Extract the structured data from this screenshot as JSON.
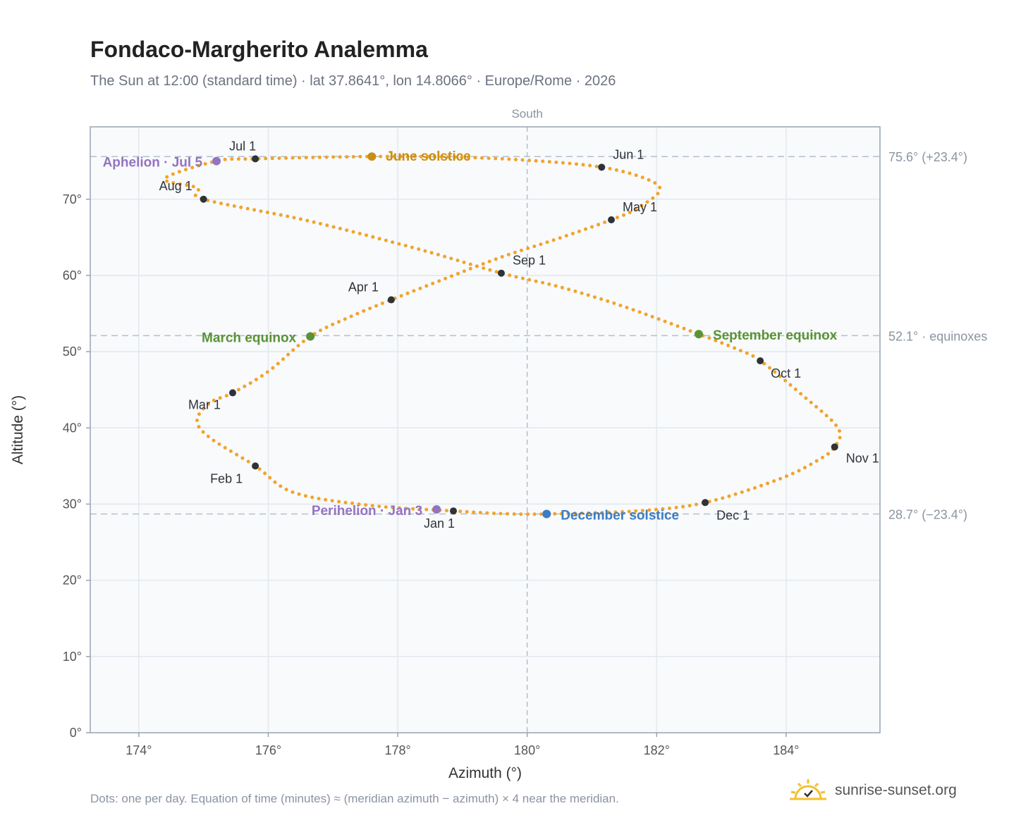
{
  "header": {
    "title": "Fondaco-Margherito Analemma",
    "subtitle": "The Sun at 12:00 (standard time) · lat 37.8641°, lon 14.8066° · Europe/Rome · 2026"
  },
  "footer": {
    "note": "Dots: one per day. Equation of time (minutes) ≈ (meridian azimuth − azimuth) × 4 near the meridian.",
    "brand": "sunrise-sunset.org"
  },
  "colors": {
    "analemma": "#f2a32a",
    "month_marker": "#2f3338",
    "solstice_june": "#c98f12",
    "solstice_december": "#3b7cc4",
    "equinox": "#5a9235",
    "apsis": "#9474c0",
    "reference_line": "#b4bfcc",
    "grid": "#e3e8ee",
    "plot_bg": "#f8fafc",
    "frame": "#98a3b3"
  },
  "chart_data": {
    "type": "scatter",
    "title": "Fondaco-Margherito Analemma",
    "subtitle": "The Sun at 12:00 (standard time) · lat 37.8641°, lon 14.8066° · Europe/Rome · 2026",
    "xlabel": "Azimuth (°)",
    "ylabel": "Altitude (°)",
    "xlim": [
      173.25,
      185.45
    ],
    "ylim": [
      0,
      79.5
    ],
    "grid": true,
    "x_ticks": [
      174,
      176,
      178,
      180,
      182,
      184
    ],
    "x_tick_labels": [
      "174°",
      "176°",
      "178°",
      "180°",
      "182°",
      "184°"
    ],
    "y_ticks": [
      0,
      10,
      20,
      30,
      40,
      50,
      60,
      70
    ],
    "y_tick_labels": [
      "0°",
      "10°",
      "20°",
      "30°",
      "40°",
      "50°",
      "60°",
      "70°"
    ],
    "meridian": {
      "azimuth": 180,
      "label": "South"
    },
    "reference_lines": [
      {
        "altitude": 75.6,
        "label": "75.6° (+23.4°)"
      },
      {
        "altitude": 52.1,
        "label": "52.1° · equinoxes"
      },
      {
        "altitude": 28.7,
        "label": "28.7° (−23.4°)"
      }
    ],
    "daily_positions": {
      "description": "one dot per day",
      "points": [
        [
          178.86,
          29.1
        ],
        [
          177.6,
          29.8
        ],
        [
          176.4,
          31.5
        ],
        [
          175.8,
          35.0
        ],
        [
          175.1,
          38.7
        ],
        [
          174.9,
          41.0
        ],
        [
          175.1,
          43.3
        ],
        [
          175.45,
          44.6
        ],
        [
          176.0,
          47.4
        ],
        [
          176.65,
          52.0
        ],
        [
          177.3,
          54.7
        ],
        [
          177.9,
          56.8
        ],
        [
          178.8,
          59.8
        ],
        [
          179.6,
          62.4
        ],
        [
          180.5,
          64.9
        ],
        [
          181.3,
          67.3
        ],
        [
          181.7,
          68.8
        ],
        [
          182.05,
          71.2
        ],
        [
          181.8,
          72.8
        ],
        [
          181.15,
          74.2
        ],
        [
          180.2,
          75.0
        ],
        [
          179.0,
          75.5
        ],
        [
          177.6,
          75.6
        ],
        [
          175.8,
          75.3
        ],
        [
          175.2,
          75.0
        ],
        [
          174.4,
          72.7
        ],
        [
          174.9,
          71.5
        ],
        [
          175.0,
          70.0
        ],
        [
          176.6,
          67.2
        ],
        [
          178.3,
          63.5
        ],
        [
          179.6,
          60.3
        ],
        [
          180.5,
          58.5
        ],
        [
          181.5,
          55.9
        ],
        [
          182.65,
          52.3
        ],
        [
          183.25,
          50.3
        ],
        [
          183.6,
          48.8
        ],
        [
          184.25,
          44.3
        ],
        [
          184.8,
          40.0
        ],
        [
          184.75,
          37.5
        ],
        [
          184.5,
          35.8
        ],
        [
          183.9,
          33.3
        ],
        [
          182.75,
          30.2
        ],
        [
          181.7,
          29.1
        ],
        [
          180.3,
          28.7
        ],
        [
          179.6,
          28.75
        ],
        [
          178.86,
          29.1
        ]
      ]
    },
    "month_markers": [
      {
        "label": "Jan 1",
        "az": 178.86,
        "alt": 29.1
      },
      {
        "label": "Feb 1",
        "az": 175.8,
        "alt": 35.0
      },
      {
        "label": "Mar 1",
        "az": 175.45,
        "alt": 44.6
      },
      {
        "label": "Apr 1",
        "az": 177.9,
        "alt": 56.8
      },
      {
        "label": "May 1",
        "az": 181.3,
        "alt": 67.3
      },
      {
        "label": "Jun 1",
        "az": 181.15,
        "alt": 74.2
      },
      {
        "label": "Jul 1",
        "az": 175.8,
        "alt": 75.3
      },
      {
        "label": "Aug 1",
        "az": 175.0,
        "alt": 70.0
      },
      {
        "label": "Sep 1",
        "az": 179.6,
        "alt": 60.3
      },
      {
        "label": "Oct 1",
        "az": 183.6,
        "alt": 48.8
      },
      {
        "label": "Nov 1",
        "az": 184.75,
        "alt": 37.5
      },
      {
        "label": "Dec 1",
        "az": 182.75,
        "alt": 30.2
      }
    ],
    "events": [
      {
        "label": "June solstice",
        "az": 177.6,
        "alt": 75.6,
        "kind": "solstice_june"
      },
      {
        "label": "December solstice",
        "az": 180.3,
        "alt": 28.7,
        "kind": "solstice_december"
      },
      {
        "label": "March equinox",
        "az": 176.65,
        "alt": 52.0,
        "kind": "equinox"
      },
      {
        "label": "September equinox",
        "az": 182.65,
        "alt": 52.3,
        "kind": "equinox"
      },
      {
        "label": "Aphelion · Jul 5",
        "az": 175.2,
        "alt": 75.0,
        "kind": "apsis"
      },
      {
        "label": "Perihelion · Jan 3",
        "az": 178.6,
        "alt": 29.3,
        "kind": "apsis"
      }
    ]
  }
}
